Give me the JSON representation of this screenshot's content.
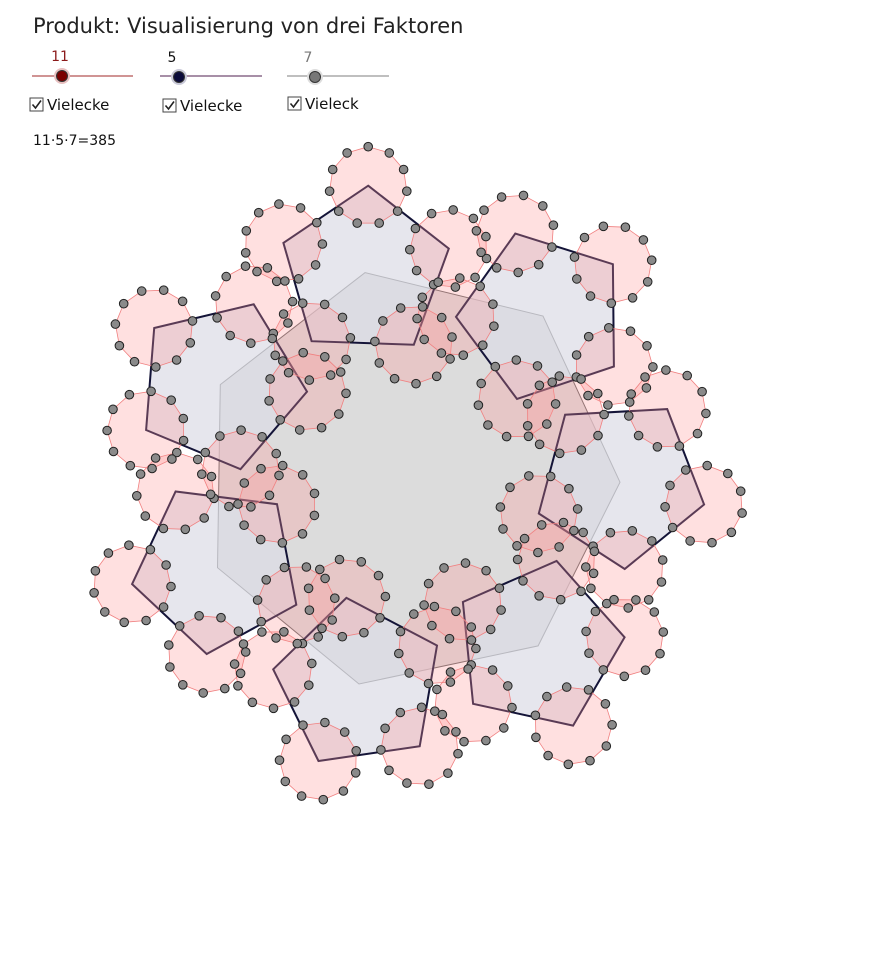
{
  "title": "Produkt: Visualisierung von drei Faktoren",
  "controls": [
    {
      "value": 11,
      "checkbox_label": "Vielecke",
      "checked": true
    },
    {
      "value": 5,
      "checkbox_label": "Vielecke",
      "checked": true
    },
    {
      "value": 7,
      "checkbox_label": "Vieleck",
      "checked": true
    }
  ],
  "result_text": "11·5·7=385"
}
